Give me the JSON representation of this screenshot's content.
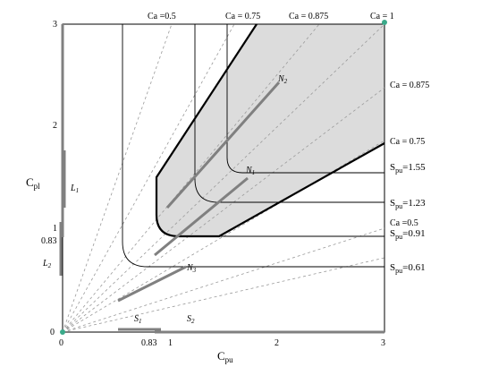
{
  "axes": {
    "x_label": "C",
    "x_label_sub": "pu",
    "y_label": "C",
    "y_label_sub": "pl",
    "x_ticks": [
      "0",
      "1",
      "2",
      "3"
    ],
    "y_ticks": [
      "0",
      "1",
      "2",
      "3"
    ],
    "x_extra_tick": "0.83",
    "y_extra_tick": "0.83"
  },
  "ca_labels": {
    "ca_0_5_top": "Ca =0.5",
    "ca_0_75_top": "Ca = 0.75",
    "ca_0_875_top": "Ca = 0.875",
    "ca_1_top": "Ca = 1",
    "ca_0_875_right": "Ca = 0.875",
    "ca_0_75_right": "Ca = 0.75",
    "ca_0_5_right": "Ca =0.5"
  },
  "spu_labels": [
    {
      "prefix": "S",
      "sub": "pu",
      "value": "=1.55"
    },
    {
      "prefix": "S",
      "sub": "pu",
      "value": "=1.23"
    },
    {
      "prefix": "S",
      "sub": "pu",
      "value": "=0.91"
    },
    {
      "prefix": "S",
      "sub": "pu",
      "value": "=0.61"
    }
  ],
  "markers": {
    "n3": {
      "base": "N",
      "sub": "3"
    },
    "n2": {
      "base": "N",
      "sub": "2"
    },
    "n1": {
      "base": "N",
      "sub": "1"
    },
    "l1": {
      "base": "L",
      "sub": "1"
    },
    "l2": {
      "base": "L",
      "sub": "2"
    },
    "s1": {
      "base": "S",
      "sub": "1"
    },
    "s2": {
      "base": "S",
      "sub": "2"
    }
  },
  "colors": {
    "region_fill": "#dcdcdc",
    "bold_line": "#000000",
    "gray_segment": "#808080",
    "dashed_line": "#9a9a9a",
    "corner_dot": "#3aaa8a"
  }
}
